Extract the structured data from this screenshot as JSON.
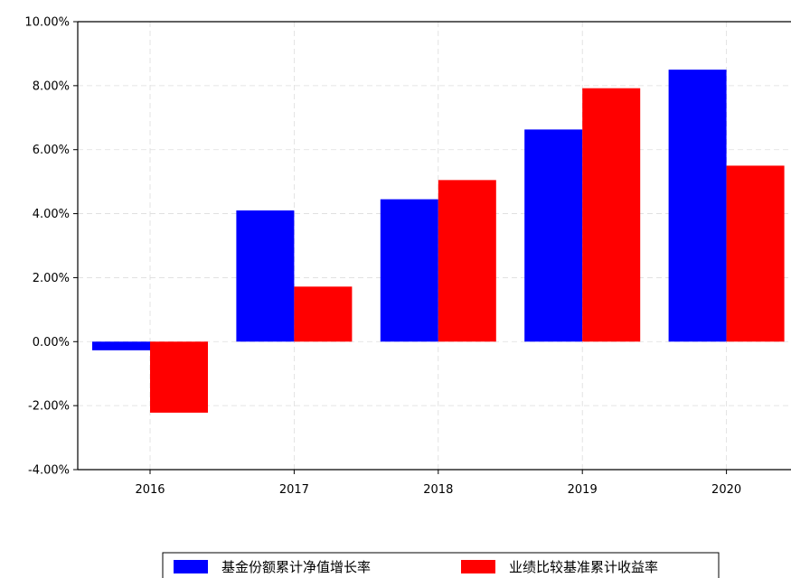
{
  "chart_data": {
    "type": "bar",
    "categories": [
      "2016",
      "2017",
      "2018",
      "2019",
      "2020"
    ],
    "series": [
      {
        "name": "基金份额累计净值增长率",
        "color": "#0000ff",
        "values": [
          -0.27,
          4.1,
          4.45,
          6.63,
          8.5
        ]
      },
      {
        "name": "业绩比较基准累计收益率",
        "color": "#ff0000",
        "values": [
          -2.22,
          1.72,
          5.05,
          7.92,
          5.5
        ]
      }
    ],
    "ylim": [
      -4,
      10
    ],
    "yticks": [
      -4,
      -2,
      0,
      2,
      4,
      6,
      8,
      10
    ],
    "ytick_labels": [
      "-4.00%",
      "-2.00%",
      "0.00%",
      "2.00%",
      "4.00%",
      "6.00%",
      "8.00%",
      "10.00%"
    ],
    "title": "",
    "xlabel": "",
    "ylabel": "",
    "grid": true,
    "legend_position": "bottom-center"
  }
}
